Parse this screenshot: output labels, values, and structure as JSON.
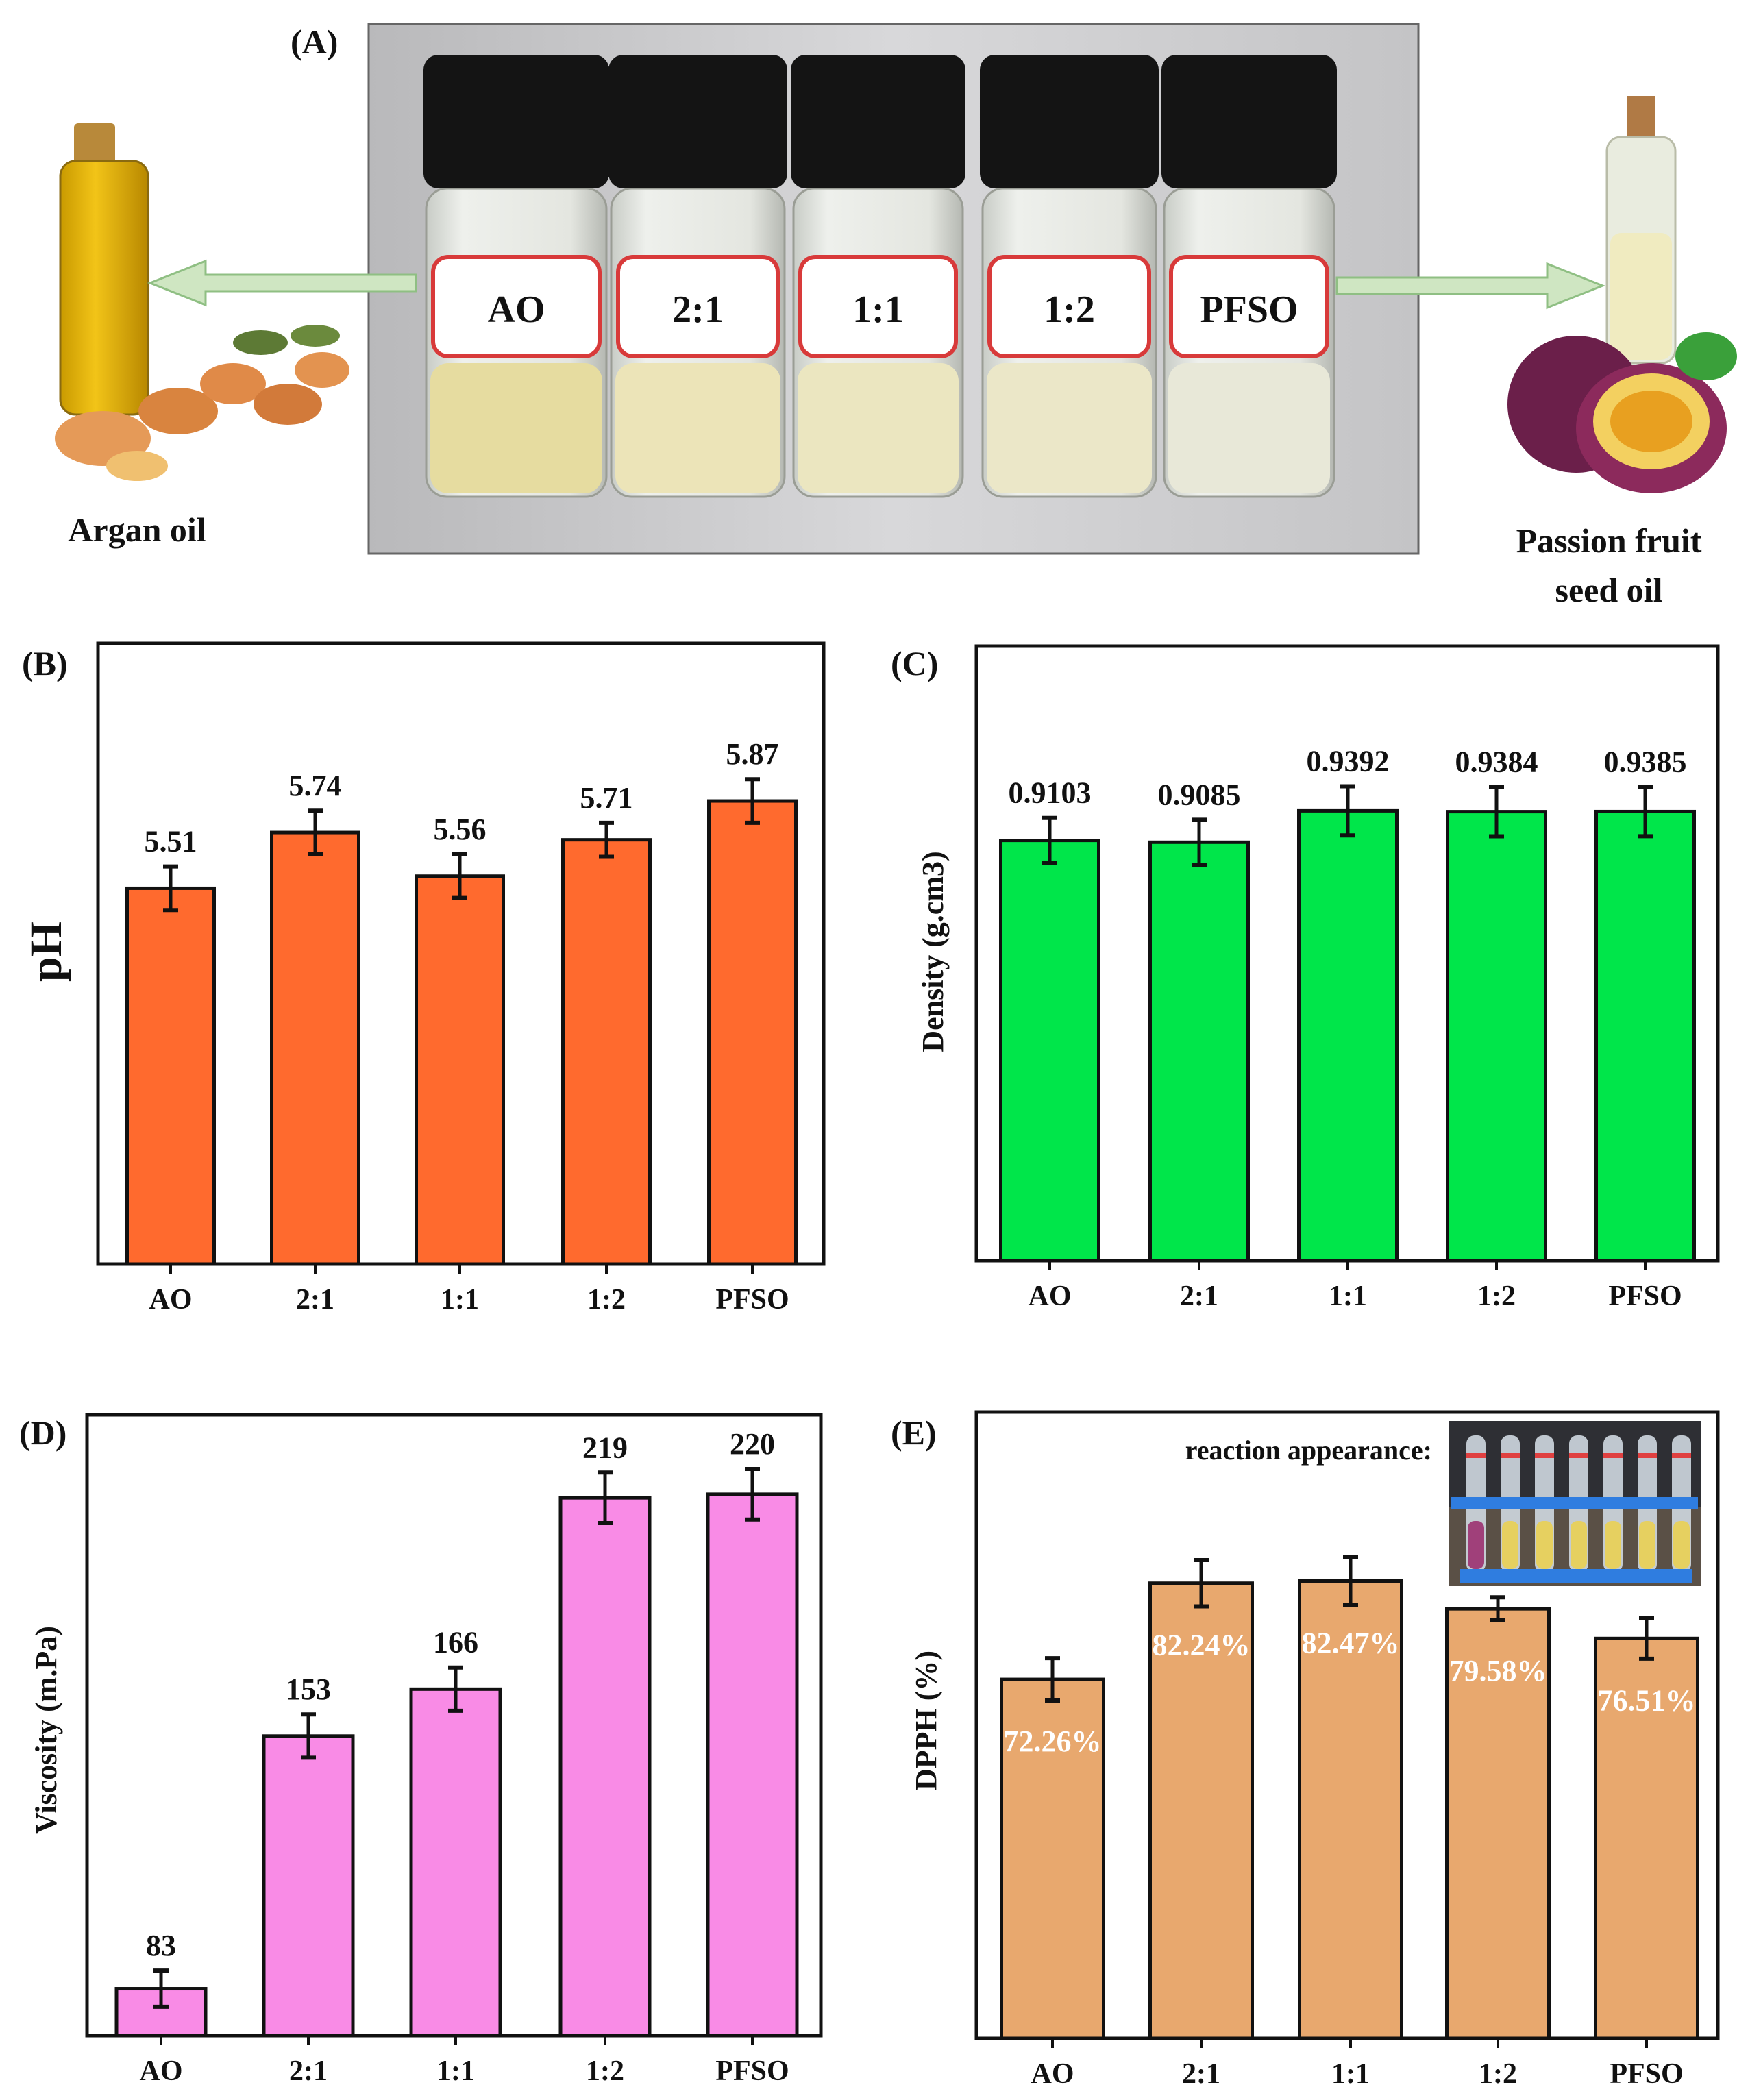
{
  "panel_a": {
    "label": "(A)",
    "vial_labels": [
      "AO",
      "2:1",
      "1:1",
      "1:2",
      "PFSO"
    ],
    "left_caption": "Argan oil",
    "right_caption_line1": "Passion fruit",
    "right_caption_line2": "seed oil"
  },
  "colors": {
    "ph": "#ff6a2e",
    "density": "#00e64a",
    "viscosity": "#f98be6",
    "dpph": "#e8a86e"
  },
  "chart_data": [
    {
      "panel": "(B)",
      "type": "bar",
      "categories": [
        "AO",
        "2:1",
        "1:1",
        "1:2",
        "PFSO"
      ],
      "values": [
        5.51,
        5.74,
        5.56,
        5.71,
        5.87
      ],
      "value_labels": [
        "5.51",
        "5.74",
        "5.56",
        "5.71",
        "5.87"
      ],
      "errors": [
        0.09,
        0.09,
        0.09,
        0.07,
        0.09
      ],
      "xlabel": "",
      "ylabel": "pH",
      "ylim": [
        3.96,
        6.52
      ],
      "grid": false
    },
    {
      "panel": "(C)",
      "type": "bar",
      "categories": [
        "AO",
        "2:1",
        "1:1",
        "1:2",
        "PFSO"
      ],
      "values": [
        0.9103,
        0.9085,
        0.9392,
        0.9384,
        0.9385
      ],
      "value_labels": [
        "0.9103",
        "0.9085",
        "0.9392",
        "0.9384",
        "0.9385"
      ],
      "errors": [
        0.022,
        0.022,
        0.024,
        0.024,
        0.024
      ],
      "xlabel": "",
      "ylabel": "Density (g.cm3)",
      "ylim": [
        0.5,
        1.1
      ],
      "grid": false
    },
    {
      "panel": "(D)",
      "type": "bar",
      "categories": [
        "AO",
        "2:1",
        "1:1",
        "1:2",
        "PFSO"
      ],
      "values": [
        83,
        153,
        166,
        219,
        220
      ],
      "value_labels": [
        "83",
        "153",
        "166",
        "219",
        "220"
      ],
      "errors": [
        5,
        6,
        6,
        7,
        7
      ],
      "xlabel": "",
      "ylabel": "Viscosity (m.Pa)",
      "ylim": [
        70,
        242
      ],
      "grid": false
    },
    {
      "panel": "(E)",
      "type": "bar",
      "categories": [
        "AO",
        "2:1",
        "1:1",
        "1:2",
        "PFSO"
      ],
      "values": [
        72.26,
        82.24,
        82.47,
        79.58,
        76.51
      ],
      "value_labels": [
        "72.26%",
        "82.24%",
        "82.47%",
        "79.58%",
        "76.51%"
      ],
      "errors": [
        2.2,
        2.4,
        2.5,
        1.2,
        2.1
      ],
      "xlabel": "",
      "ylabel": "DPPH (%)",
      "ylim": [
        35,
        100
      ],
      "grid": false,
      "annotation": "reaction appearance:"
    }
  ]
}
